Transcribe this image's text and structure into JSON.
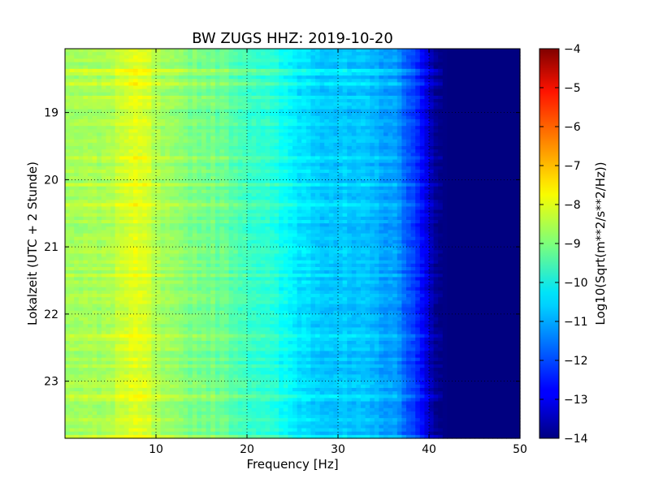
{
  "chart_data": {
    "type": "heatmap",
    "title": "BW ZUGS HHZ: 2019-10-20",
    "xlabel": "Frequency [Hz]",
    "ylabel": "Lokalzeit (UTC + 2 Stunde)",
    "xlim": [
      0,
      50
    ],
    "ylim": [
      18.05,
      23.85
    ],
    "y_inverted": true,
    "x_ticks": [
      10,
      20,
      30,
      40,
      50
    ],
    "y_ticks": [
      19,
      20,
      21,
      22,
      23
    ],
    "grid": true,
    "colormap": "jet",
    "colorbar": {
      "label": "Log10(Sqrt(m**2/s**2/Hz))",
      "range": [
        -14,
        -4
      ],
      "ticks": [
        -4,
        -5,
        -6,
        -7,
        -8,
        -9,
        -10,
        -11,
        -12,
        -13,
        -14
      ]
    },
    "spectrum_profile": {
      "frequency_hz": [
        0,
        2,
        4,
        6,
        8,
        9,
        10,
        12,
        14,
        16,
        18,
        20,
        22,
        24,
        26,
        28,
        30,
        32,
        34,
        36,
        37,
        38,
        39,
        40,
        41,
        42,
        45,
        50
      ],
      "log10_amplitude": [
        -8.6,
        -8.6,
        -8.7,
        -8.3,
        -8.1,
        -8.2,
        -8.6,
        -8.9,
        -9.0,
        -9.1,
        -9.3,
        -9.6,
        -9.8,
        -10.2,
        -10.5,
        -10.7,
        -10.8,
        -10.9,
        -11.0,
        -11.2,
        -11.5,
        -12.0,
        -12.6,
        -13.3,
        -13.8,
        -14.0,
        -14.0,
        -14.0
      ]
    }
  }
}
